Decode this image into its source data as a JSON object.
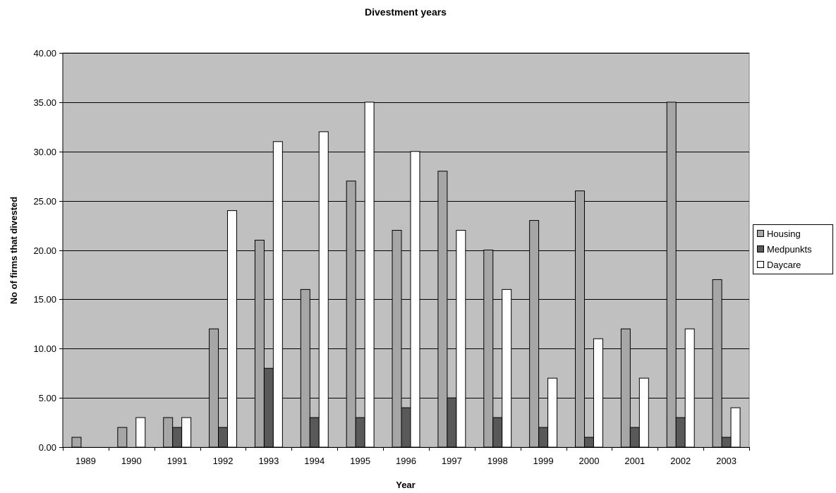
{
  "chart_data": {
    "type": "bar",
    "title": "Divestment years",
    "xlabel": "Year",
    "ylabel": "No of firms that divested",
    "ylim": [
      0,
      40
    ],
    "ytick_step": 5,
    "ytick_format": "0.00",
    "categories": [
      "1989",
      "1990",
      "1991",
      "1992",
      "1993",
      "1994",
      "1995",
      "1996",
      "1997",
      "1998",
      "1999",
      "2000",
      "2001",
      "2002",
      "2003"
    ],
    "series": [
      {
        "name": "Housing",
        "color": "#a6a6a6",
        "values": [
          1,
          2,
          3,
          12,
          21,
          16,
          27,
          22,
          28,
          20,
          23,
          26,
          12,
          35,
          17
        ]
      },
      {
        "name": "Medpunkts",
        "color": "#595959",
        "values": [
          0,
          0,
          2,
          2,
          8,
          3,
          3,
          4,
          5,
          3,
          2,
          1,
          2,
          3,
          1
        ]
      },
      {
        "name": "Daycare",
        "color": "#ffffff",
        "values": [
          0,
          3,
          3,
          24,
          31,
          32,
          35,
          30,
          22,
          16,
          7,
          11,
          7,
          12,
          4
        ]
      }
    ],
    "plot_background": "#c0c0c0",
    "grid": true,
    "legend_position": "right"
  }
}
